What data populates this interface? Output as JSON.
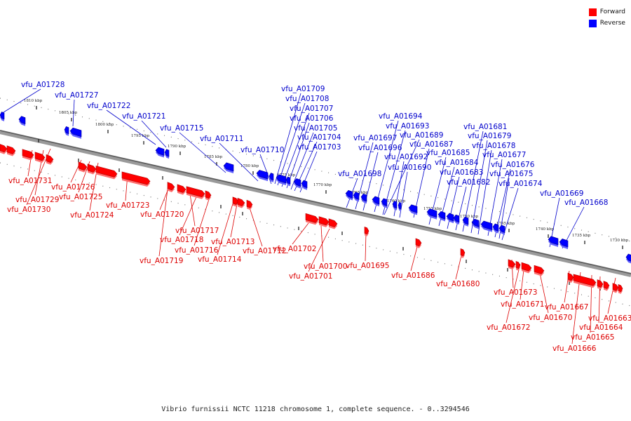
{
  "legend": [
    {
      "label": "Forward",
      "color": "#ff0000"
    },
    {
      "label": "Reverse",
      "color": "#0000ff"
    }
  ],
  "caption": "Vibrio furnissii NCTC 11218 chromosome 1, complete sequence. - 0..3294546",
  "kbp_ticks": [
    "1810 kbp",
    "1805 kbp",
    "1800 kbp",
    "1795 kbp",
    "1790 kbp",
    "1785 kbp",
    "1780 kbp",
    "1775 kbp",
    "1770 kbp",
    "1765 kbp",
    "1760 kbp",
    "1755 kbp",
    "1750 kbp",
    "1745 kbp",
    "1740 kbp",
    "1735 kbp",
    "1730 kbp"
  ],
  "reverse_genes": [
    "vfu_A01728",
    "vfu_A01727",
    "vfu_A01722",
    "vfu_A01721",
    "vfu_A01715",
    "vfu_A01711",
    "vfu_A01710",
    "vfu_A01709",
    "vfu_A01708",
    "vfu_A01707",
    "vfu_A01706",
    "vfu_A01705",
    "vfu_A01704",
    "vfu_A01703",
    "vfu_A01698",
    "vfu_A01697",
    "vfu_A01696",
    "vfu_A01694",
    "vfu_A01693",
    "vfu_A01692",
    "vfu_A01690",
    "vfu_A01689",
    "vfu_A01687",
    "vfu_A01685",
    "vfu_A01684",
    "vfu_A01683",
    "vfu_A01682",
    "vfu_A01681",
    "vfu_A01679",
    "vfu_A01678",
    "vfu_A01677",
    "vfu_A01676",
    "vfu_A01675",
    "vfu_A01674",
    "vfu_A01669",
    "vfu_A01668"
  ],
  "forward_genes": [
    "vfu_A01731",
    "vfu_A01729",
    "vfu_A01730",
    "vfu_A01726",
    "vfu_A01725",
    "vfu_A01724",
    "vfu_A01723",
    "vfu_A01720",
    "vfu_A01717",
    "vfu_A01718",
    "vfu_A01716",
    "vfu_A01719",
    "vfu_A01714",
    "vfu_A01713",
    "vfu_A01712",
    "vfu_A01702",
    "vfu_A01700",
    "vfu_A01701",
    "vfu_A01695",
    "vfu_A01686",
    "vfu_A01680",
    "vfu_A01673",
    "vfu_A01671",
    "vfu_A01670",
    "vfu_A01672",
    "vfu_A01667",
    "vfu_A01666",
    "vfu_A01665",
    "vfu_A01664",
    "vfu_A01663"
  ]
}
